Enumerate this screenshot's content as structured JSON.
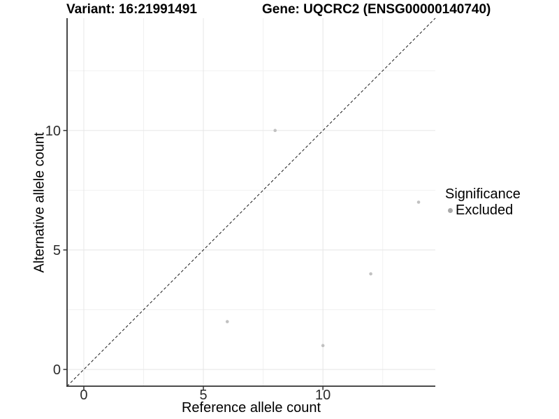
{
  "titles": {
    "variant": "Variant: 16:21991491",
    "gene": "Gene: UQCRC2 (ENSG00000140740)"
  },
  "chart_data": {
    "type": "scatter",
    "title": "Variant: 16:21991491 — Gene: UQCRC2 (ENSG00000140740)",
    "xlabel": "Reference allele count",
    "ylabel": "Alternative allele count",
    "xlim": [
      -0.7,
      14.7
    ],
    "ylim": [
      -0.7,
      14.7
    ],
    "x_major_ticks": [
      0,
      5,
      10
    ],
    "y_major_ticks": [
      0,
      5,
      10
    ],
    "x_minor_ticks": [
      2.5,
      7.5,
      12.5
    ],
    "y_minor_ticks": [
      2.5,
      7.5,
      12.5
    ],
    "grid": true,
    "identity_line": {
      "slope": 1,
      "intercept": 0,
      "style": "dashed"
    },
    "legend": {
      "title": "Significance",
      "position": "right",
      "items": [
        {
          "label": "Excluded",
          "color": "#a8a8a8"
        }
      ]
    },
    "series": [
      {
        "name": "Excluded",
        "color": "#c1c1c1",
        "points": [
          [
            6,
            2
          ],
          [
            8,
            10
          ],
          [
            10,
            1
          ],
          [
            12,
            4
          ],
          [
            14,
            7
          ]
        ]
      }
    ],
    "colors": {
      "background": "#ffffff",
      "grid_major": "#e8e8e8",
      "grid_minor": "#f0f0f0",
      "axis_line": "#333333",
      "tick_text": "#2b2b2b",
      "identity_line": "#1a1a1a"
    }
  }
}
